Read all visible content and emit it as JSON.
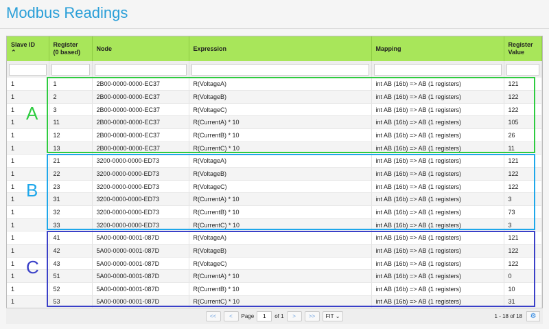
{
  "title": "Modbus Readings",
  "columns": [
    "Slave ID",
    "Register\n(0 based)",
    "Node",
    "Expression",
    "Mapping",
    "Register\nValue"
  ],
  "sort_icon": "chevron-up-icon",
  "rows": [
    [
      "1",
      "1",
      "2B00-0000-0000-EC37",
      "R(VoltageA)",
      "int AB (16b) => AB (1 registers)",
      "121"
    ],
    [
      "1",
      "2",
      "2B00-0000-0000-EC37",
      "R(VoltageB)",
      "int AB (16b) => AB (1 registers)",
      "122"
    ],
    [
      "1",
      "3",
      "2B00-0000-0000-EC37",
      "R(VoltageC)",
      "int AB (16b) => AB (1 registers)",
      "122"
    ],
    [
      "1",
      "11",
      "2B00-0000-0000-EC37",
      "R(CurrentA) * 10",
      "int AB (16b) => AB (1 registers)",
      "105"
    ],
    [
      "1",
      "12",
      "2B00-0000-0000-EC37",
      "R(CurrentB) * 10",
      "int AB (16b) => AB (1 registers)",
      "26"
    ],
    [
      "1",
      "13",
      "2B00-0000-0000-EC37",
      "R(CurrentC) * 10",
      "int AB (16b) => AB (1 registers)",
      "11"
    ],
    [
      "1",
      "21",
      "3200-0000-0000-ED73",
      "R(VoltageA)",
      "int AB (16b) => AB (1 registers)",
      "121"
    ],
    [
      "1",
      "22",
      "3200-0000-0000-ED73",
      "R(VoltageB)",
      "int AB (16b) => AB (1 registers)",
      "122"
    ],
    [
      "1",
      "23",
      "3200-0000-0000-ED73",
      "R(VoltageC)",
      "int AB (16b) => AB (1 registers)",
      "122"
    ],
    [
      "1",
      "31",
      "3200-0000-0000-ED73",
      "R(CurrentA) * 10",
      "int AB (16b) => AB (1 registers)",
      "3"
    ],
    [
      "1",
      "32",
      "3200-0000-0000-ED73",
      "R(CurrentB) * 10",
      "int AB (16b) => AB (1 registers)",
      "73"
    ],
    [
      "1",
      "33",
      "3200-0000-0000-ED73",
      "R(CurrentC) * 10",
      "int AB (16b) => AB (1 registers)",
      "3"
    ],
    [
      "1",
      "41",
      "5A00-0000-0001-087D",
      "R(VoltageA)",
      "int AB (16b) => AB (1 registers)",
      "121"
    ],
    [
      "1",
      "42",
      "5A00-0000-0001-087D",
      "R(VoltageB)",
      "int AB (16b) => AB (1 registers)",
      "122"
    ],
    [
      "1",
      "43",
      "5A00-0000-0001-087D",
      "R(VoltageC)",
      "int AB (16b) => AB (1 registers)",
      "122"
    ],
    [
      "1",
      "51",
      "5A00-0000-0001-087D",
      "R(CurrentA) * 10",
      "int AB (16b) => AB (1 registers)",
      "0"
    ],
    [
      "1",
      "52",
      "5A00-0000-0001-087D",
      "R(CurrentB) * 10",
      "int AB (16b) => AB (1 registers)",
      "10"
    ],
    [
      "1",
      "53",
      "5A00-0000-0001-087D",
      "R(CurrentC) * 10",
      "int AB (16b) => AB (1 registers)",
      "31"
    ]
  ],
  "groups": [
    {
      "label": "A",
      "color": "#2ecc40"
    },
    {
      "label": "B",
      "color": "#1ea7ea"
    },
    {
      "label": "C",
      "color": "#3a40c8"
    }
  ],
  "pager": {
    "first": "<<",
    "prev": "<",
    "page_label": "Page",
    "page": "1",
    "of": "of 1",
    "next": ">",
    "last": ">>",
    "size": "FIT",
    "info": "1 - 18 of 18",
    "settings_icon": "gear-icon"
  }
}
